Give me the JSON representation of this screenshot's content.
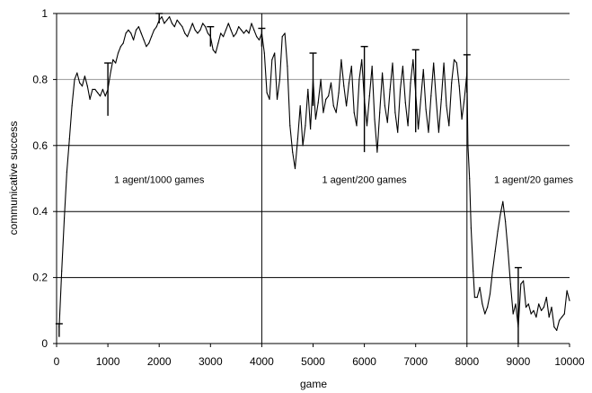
{
  "chart_data": {
    "type": "line",
    "title": "",
    "xlabel": "game",
    "ylabel": "communicative success",
    "xlim": [
      0,
      10000
    ],
    "ylim": [
      0,
      1
    ],
    "xticks": [
      0,
      1000,
      2000,
      3000,
      4000,
      5000,
      6000,
      7000,
      8000,
      9000,
      10000
    ],
    "yticks": [
      0,
      0.2,
      0.4,
      0.6,
      0.8,
      1
    ],
    "ytick_labels": [
      "0",
      "0.2",
      "0.4",
      "0.6",
      "0.8",
      "1"
    ],
    "grid": "horizontal",
    "phase_dividers": [
      4000,
      8000
    ],
    "annotations": [
      {
        "text": "1 agent/1000 games",
        "x": 2000,
        "y": 0.5
      },
      {
        "text": "1 agent/200 games",
        "x": 6000,
        "y": 0.5
      },
      {
        "text": "1 agent/20 games",
        "x": 9300,
        "y": 0.5
      }
    ],
    "series": [
      {
        "values": [
          [
            50,
            0.05
          ],
          [
            100,
            0.22
          ],
          [
            150,
            0.38
          ],
          [
            200,
            0.52
          ],
          [
            250,
            0.62
          ],
          [
            300,
            0.72
          ],
          [
            350,
            0.8
          ],
          [
            400,
            0.82
          ],
          [
            450,
            0.79
          ],
          [
            500,
            0.78
          ],
          [
            550,
            0.81
          ],
          [
            600,
            0.78
          ],
          [
            650,
            0.74
          ],
          [
            700,
            0.77
          ],
          [
            750,
            0.77
          ],
          [
            800,
            0.76
          ],
          [
            850,
            0.75
          ],
          [
            900,
            0.77
          ],
          [
            950,
            0.75
          ],
          [
            1000,
            0.77
          ],
          [
            1050,
            0.82
          ],
          [
            1100,
            0.86
          ],
          [
            1150,
            0.85
          ],
          [
            1200,
            0.88
          ],
          [
            1250,
            0.9
          ],
          [
            1300,
            0.91
          ],
          [
            1350,
            0.94
          ],
          [
            1400,
            0.95
          ],
          [
            1450,
            0.94
          ],
          [
            1500,
            0.92
          ],
          [
            1550,
            0.95
          ],
          [
            1600,
            0.96
          ],
          [
            1650,
            0.94
          ],
          [
            1700,
            0.92
          ],
          [
            1750,
            0.9
          ],
          [
            1800,
            0.91
          ],
          [
            1850,
            0.93
          ],
          [
            1900,
            0.95
          ],
          [
            1950,
            0.96
          ],
          [
            2000,
            0.98
          ],
          [
            2050,
            0.99
          ],
          [
            2100,
            0.97
          ],
          [
            2150,
            0.98
          ],
          [
            2200,
            0.99
          ],
          [
            2250,
            0.97
          ],
          [
            2300,
            0.96
          ],
          [
            2350,
            0.98
          ],
          [
            2400,
            0.97
          ],
          [
            2450,
            0.96
          ],
          [
            2500,
            0.94
          ],
          [
            2550,
            0.93
          ],
          [
            2600,
            0.95
          ],
          [
            2650,
            0.97
          ],
          [
            2700,
            0.95
          ],
          [
            2750,
            0.94
          ],
          [
            2800,
            0.95
          ],
          [
            2850,
            0.97
          ],
          [
            2900,
            0.96
          ],
          [
            2950,
            0.94
          ],
          [
            3000,
            0.93
          ],
          [
            3050,
            0.89
          ],
          [
            3100,
            0.88
          ],
          [
            3150,
            0.91
          ],
          [
            3200,
            0.94
          ],
          [
            3250,
            0.93
          ],
          [
            3300,
            0.95
          ],
          [
            3350,
            0.97
          ],
          [
            3400,
            0.95
          ],
          [
            3450,
            0.93
          ],
          [
            3500,
            0.94
          ],
          [
            3550,
            0.96
          ],
          [
            3600,
            0.95
          ],
          [
            3650,
            0.94
          ],
          [
            3700,
            0.95
          ],
          [
            3750,
            0.94
          ],
          [
            3800,
            0.97
          ],
          [
            3850,
            0.95
          ],
          [
            3900,
            0.93
          ],
          [
            3950,
            0.92
          ],
          [
            4000,
            0.94
          ],
          [
            4050,
            0.88
          ],
          [
            4100,
            0.76
          ],
          [
            4150,
            0.74
          ],
          [
            4200,
            0.86
          ],
          [
            4250,
            0.88
          ],
          [
            4300,
            0.74
          ],
          [
            4350,
            0.8
          ],
          [
            4400,
            0.93
          ],
          [
            4450,
            0.94
          ],
          [
            4500,
            0.84
          ],
          [
            4550,
            0.66
          ],
          [
            4600,
            0.58
          ],
          [
            4650,
            0.53
          ],
          [
            4700,
            0.62
          ],
          [
            4750,
            0.72
          ],
          [
            4800,
            0.6
          ],
          [
            4850,
            0.66
          ],
          [
            4900,
            0.77
          ],
          [
            4950,
            0.65
          ],
          [
            5000,
            0.8
          ],
          [
            5050,
            0.68
          ],
          [
            5100,
            0.73
          ],
          [
            5150,
            0.8
          ],
          [
            5200,
            0.7
          ],
          [
            5250,
            0.74
          ],
          [
            5300,
            0.75
          ],
          [
            5350,
            0.79
          ],
          [
            5400,
            0.72
          ],
          [
            5450,
            0.7
          ],
          [
            5500,
            0.76
          ],
          [
            5550,
            0.86
          ],
          [
            5600,
            0.78
          ],
          [
            5650,
            0.72
          ],
          [
            5700,
            0.79
          ],
          [
            5750,
            0.84
          ],
          [
            5800,
            0.7
          ],
          [
            5850,
            0.66
          ],
          [
            5900,
            0.8
          ],
          [
            5950,
            0.86
          ],
          [
            6000,
            0.74
          ],
          [
            6050,
            0.66
          ],
          [
            6100,
            0.75
          ],
          [
            6150,
            0.84
          ],
          [
            6200,
            0.68
          ],
          [
            6250,
            0.58
          ],
          [
            6300,
            0.7
          ],
          [
            6350,
            0.82
          ],
          [
            6400,
            0.72
          ],
          [
            6450,
            0.67
          ],
          [
            6500,
            0.77
          ],
          [
            6550,
            0.85
          ],
          [
            6600,
            0.7
          ],
          [
            6650,
            0.64
          ],
          [
            6700,
            0.77
          ],
          [
            6750,
            0.84
          ],
          [
            6800,
            0.73
          ],
          [
            6850,
            0.66
          ],
          [
            6900,
            0.79
          ],
          [
            6950,
            0.86
          ],
          [
            7000,
            0.76
          ],
          [
            7050,
            0.65
          ],
          [
            7100,
            0.74
          ],
          [
            7150,
            0.83
          ],
          [
            7200,
            0.71
          ],
          [
            7250,
            0.64
          ],
          [
            7300,
            0.75
          ],
          [
            7350,
            0.85
          ],
          [
            7400,
            0.74
          ],
          [
            7450,
            0.64
          ],
          [
            7500,
            0.74
          ],
          [
            7550,
            0.85
          ],
          [
            7600,
            0.72
          ],
          [
            7650,
            0.66
          ],
          [
            7700,
            0.79
          ],
          [
            7750,
            0.86
          ],
          [
            7800,
            0.85
          ],
          [
            7850,
            0.78
          ],
          [
            7900,
            0.68
          ],
          [
            7950,
            0.74
          ],
          [
            8000,
            0.82
          ],
          [
            8020,
            0.6
          ],
          [
            8050,
            0.5
          ],
          [
            8080,
            0.35
          ],
          [
            8120,
            0.22
          ],
          [
            8150,
            0.14
          ],
          [
            8200,
            0.14
          ],
          [
            8250,
            0.17
          ],
          [
            8300,
            0.12
          ],
          [
            8350,
            0.09
          ],
          [
            8400,
            0.11
          ],
          [
            8450,
            0.15
          ],
          [
            8500,
            0.22
          ],
          [
            8550,
            0.28
          ],
          [
            8600,
            0.34
          ],
          [
            8650,
            0.39
          ],
          [
            8700,
            0.43
          ],
          [
            8750,
            0.37
          ],
          [
            8800,
            0.28
          ],
          [
            8850,
            0.18
          ],
          [
            8900,
            0.09
          ],
          [
            8950,
            0.12
          ],
          [
            9000,
            0.05
          ],
          [
            9050,
            0.18
          ],
          [
            9100,
            0.19
          ],
          [
            9150,
            0.11
          ],
          [
            9200,
            0.12
          ],
          [
            9250,
            0.09
          ],
          [
            9300,
            0.1
          ],
          [
            9350,
            0.08
          ],
          [
            9400,
            0.12
          ],
          [
            9450,
            0.1
          ],
          [
            9500,
            0.11
          ],
          [
            9550,
            0.14
          ],
          [
            9600,
            0.08
          ],
          [
            9650,
            0.11
          ],
          [
            9700,
            0.05
          ],
          [
            9750,
            0.04
          ],
          [
            9800,
            0.07
          ],
          [
            9850,
            0.08
          ],
          [
            9900,
            0.09
          ],
          [
            9950,
            0.16
          ],
          [
            10000,
            0.13
          ]
        ]
      }
    ],
    "error_bars": [
      {
        "x": 50,
        "y": 0.05,
        "top": 0.06,
        "bottom": 0.02
      },
      {
        "x": 1000,
        "y": 0.77,
        "top": 0.85,
        "bottom": 0.69
      },
      {
        "x": 2000,
        "y": 0.98,
        "top": 1.0,
        "bottom": 0.97
      },
      {
        "x": 3000,
        "y": 0.93,
        "top": 0.96,
        "bottom": 0.9
      },
      {
        "x": 4000,
        "y": 0.94,
        "top": 0.955,
        "bottom": 0.9
      },
      {
        "x": 5000,
        "y": 0.8,
        "top": 0.88,
        "bottom": 0.72
      },
      {
        "x": 6000,
        "y": 0.74,
        "top": 0.9,
        "bottom": 0.58
      },
      {
        "x": 7000,
        "y": 0.76,
        "top": 0.89,
        "bottom": 0.64
      },
      {
        "x": 8000,
        "y": 0.82,
        "top": 0.875,
        "bottom": 0.76
      },
      {
        "x": 9000,
        "y": 0.05,
        "top": 0.23,
        "bottom": 0.0
      }
    ]
  }
}
